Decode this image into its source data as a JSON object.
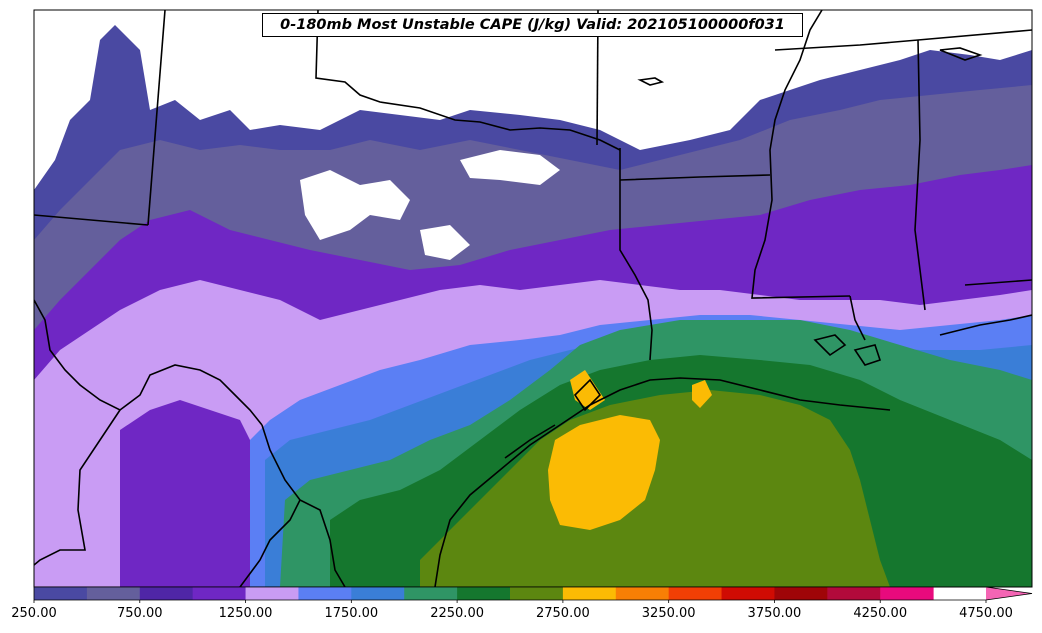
{
  "title": "0-180mb Most Unstable CAPE (J/kg) Valid: 202105100000f031",
  "colorbar": {
    "labels": [
      "250.00",
      "750.00",
      "1250.00",
      "1750.00",
      "2250.00",
      "2750.00",
      "3250.00",
      "3750.00",
      "4250.00",
      "4750.00"
    ],
    "label_values": [
      250,
      750,
      1250,
      1750,
      2250,
      2750,
      3250,
      3750,
      4250,
      4750
    ],
    "bounds": [
      250,
      500,
      750,
      1000,
      1250,
      1500,
      1750,
      2000,
      2250,
      2500,
      2750,
      3000,
      3250,
      3500,
      3750,
      4000,
      4250,
      4500,
      4750
    ],
    "colors": [
      "#4a49a2",
      "#645f9c",
      "#4f26a6",
      "#6f27c4",
      "#c99cf4",
      "#5b7ff4",
      "#3a7ed7",
      "#2f9565",
      "#15772e",
      "#5c8710",
      "#fbbb04",
      "#f87f05",
      "#f13f05",
      "#d00b03",
      "#9f0508",
      "#b20a3b",
      "#e80a7d",
      "#f465b4"
    ],
    "extend": "max"
  },
  "fill_colors": {
    "low": "#4a49a2",
    "mid_purple": "#6f27c4",
    "lavender": "#c99cf4",
    "blue": "#5b7ff4",
    "steel_blue": "#3a7ed7",
    "teal": "#2f9565",
    "green": "#15772e",
    "olive": "#5c8710",
    "gold": "#fbbb04"
  }
}
